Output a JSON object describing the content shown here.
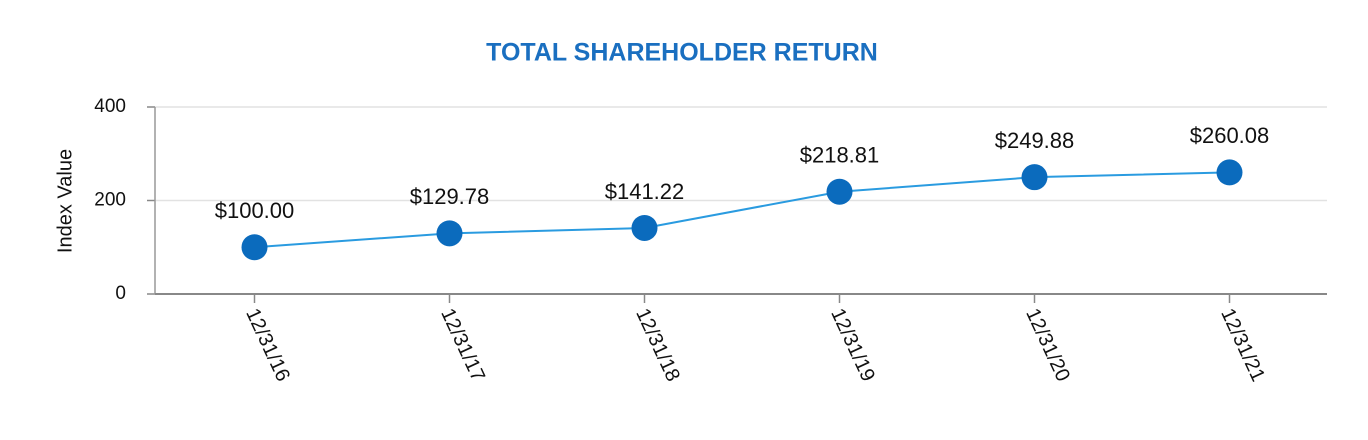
{
  "chart_data": {
    "type": "line",
    "title": "TOTAL SHAREHOLDER RETURN",
    "y_label": "Index Value",
    "categories": [
      "12/31/16",
      "12/31/17",
      "12/31/18",
      "12/31/19",
      "12/31/20",
      "12/31/21"
    ],
    "values": [
      100,
      129.78,
      141.22,
      218.81,
      249.88,
      260.08
    ],
    "value_labels": [
      "$100.00",
      "$129.78",
      "$141.22",
      "$218.81",
      "$249.88",
      "$260.08"
    ],
    "line_color": "#2a9be0",
    "marker_color": "#0b6bbd",
    "title_color": "#1a6fc0",
    "ylim": [
      0,
      400
    ],
    "yticks": [
      0,
      200,
      400
    ],
    "grid": true
  }
}
